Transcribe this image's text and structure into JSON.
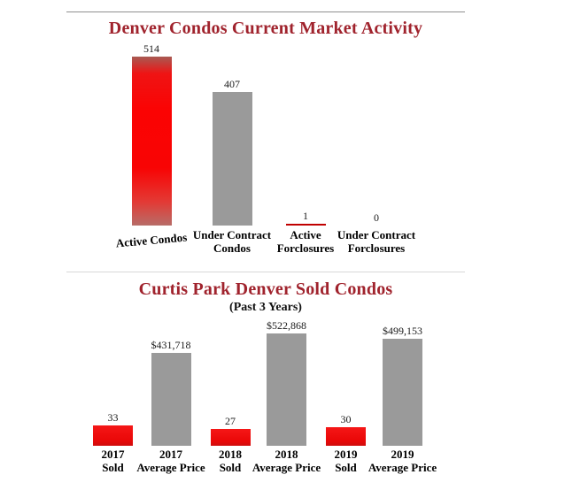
{
  "page": {
    "background": "#ffffff"
  },
  "colors": {
    "title_red": "#a0232d",
    "bar_red": "#ee0c0c",
    "bar_gray": "#9a9a9a",
    "thin_bar_red": "#c00000",
    "separator_top": "#8f8f8f",
    "separator_mid": "#d9d9d9",
    "value_text": "#1a1a1a",
    "category_text": "#000000"
  },
  "chart_data": [
    {
      "type": "bar",
      "title": "Denver Condos Current Market Activity",
      "categories": [
        "Active Condos",
        "Under Contract Condos",
        "Active Forclosures",
        "Under Contract Forclosures"
      ],
      "category_lines": [
        [
          "Active Condos"
        ],
        [
          "Under Contract",
          "Condos"
        ],
        [
          "Active",
          "Forclosures"
        ],
        [
          "Under Contract",
          "Forclosures"
        ]
      ],
      "values": [
        514,
        407,
        1,
        0
      ],
      "value_labels": [
        "514",
        "407",
        "1",
        "0"
      ],
      "bar_colors": [
        "red",
        "gray",
        "red",
        "gray"
      ],
      "ylabel": "",
      "xlabel": "",
      "ylim": [
        0,
        550
      ],
      "grid": false,
      "legend": "none"
    },
    {
      "type": "bar",
      "title": "Curtis Park Denver Sold Condos",
      "subtitle": "(Past 3 Years)",
      "categories": [
        "2017 Sold",
        "2017 Average Price",
        "2018 Sold",
        "2018 Average Price",
        "2019 Sold",
        "2019 Average Price"
      ],
      "category_lines": [
        [
          "2017",
          "Sold"
        ],
        [
          "2017",
          "Average Price"
        ],
        [
          "2018",
          "Sold"
        ],
        [
          "2018",
          "Average Price"
        ],
        [
          "2019",
          "Sold"
        ],
        [
          "2019",
          "Average Price"
        ]
      ],
      "values": [
        33,
        431718,
        27,
        522868,
        30,
        499153
      ],
      "value_labels": [
        "33",
        "$431,718",
        "27",
        "$522,868",
        "30",
        "$499,153"
      ],
      "bar_colors": [
        "red",
        "gray",
        "red",
        "gray",
        "red",
        "gray"
      ],
      "bar_axis": [
        "sold",
        "price",
        "sold",
        "price",
        "sold",
        "price"
      ],
      "axes": {
        "sold_max": 33,
        "price_max": 522868
      },
      "ylabel": "",
      "xlabel": "",
      "grid": false,
      "legend": "none"
    }
  ]
}
